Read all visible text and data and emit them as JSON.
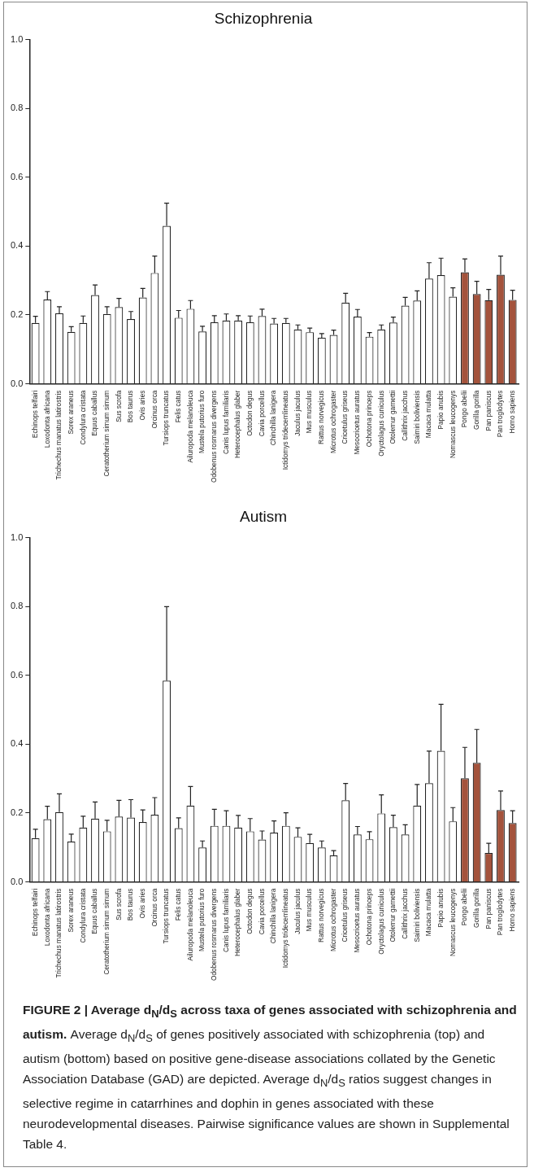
{
  "chart_data": [
    {
      "type": "bar",
      "title": "Schizophrenia",
      "categories": [
        "Echinops telfairi",
        "Loxodonta africana",
        "Trichechus manatus latirostris",
        "Sorex araneus",
        "Condylura cristata",
        "Equus caballus",
        "Ceratotherium simum simum",
        "Sus scrofa",
        "Bos taurus",
        "Ovis aries",
        "Orcinus orca",
        "Tursiops truncatus",
        "Felis catus",
        "Ailuropoda melanoleuca",
        "Mustela putorius furo",
        "Odobenus rosmarus divergens",
        "Canis lupus familiaris",
        "Heterocephalus glaber",
        "Octodon degus",
        "Cavia porcellus",
        "Chinchilla lanigera",
        "Ictidomys tridecemlineatus",
        "Jaculus jaculus",
        "Mus musculus",
        "Rattus norvegicus",
        "Microtus ochrogaster",
        "Cricetulus griseus",
        "Mesocricetus auratus",
        "Ochotona princeps",
        "Oryctolagus cuniculus",
        "Otolemur garnettii",
        "Callithrix jacchus",
        "Saimiri boliviensis",
        "Macaca mulatta",
        "Papio anubis",
        "Nomascus leucogenys",
        "Pongo abelii",
        "Gorilla gorilla",
        "Pan paniscus",
        "Pan troglodytes",
        "Homo sapiens"
      ],
      "values": [
        0.177,
        0.245,
        0.205,
        0.151,
        0.177,
        0.258,
        0.203,
        0.223,
        0.188,
        0.251,
        0.322,
        0.459,
        0.192,
        0.218,
        0.152,
        0.179,
        0.184,
        0.184,
        0.179,
        0.197,
        0.175,
        0.177,
        0.158,
        0.15,
        0.134,
        0.142,
        0.236,
        0.195,
        0.137,
        0.158,
        0.178,
        0.227,
        0.242,
        0.306,
        0.316,
        0.253,
        0.324,
        0.261,
        0.243,
        0.317,
        0.244
      ],
      "errors": [
        [
          0.177,
          0.196
        ],
        [
          0.245,
          0.268
        ],
        [
          0.205,
          0.224
        ],
        [
          0.151,
          0.166
        ],
        [
          0.177,
          0.197
        ],
        [
          0.258,
          0.287
        ],
        [
          0.203,
          0.224
        ],
        [
          0.223,
          0.248
        ],
        [
          0.188,
          0.21
        ],
        [
          0.251,
          0.277
        ],
        [
          0.322,
          0.371
        ],
        [
          0.459,
          0.525
        ],
        [
          0.192,
          0.213
        ],
        [
          0.218,
          0.242
        ],
        [
          0.152,
          0.167
        ],
        [
          0.179,
          0.198
        ],
        [
          0.184,
          0.203
        ],
        [
          0.184,
          0.198
        ],
        [
          0.179,
          0.197
        ],
        [
          0.197,
          0.217
        ],
        [
          0.175,
          0.19
        ],
        [
          0.177,
          0.19
        ],
        [
          0.158,
          0.171
        ],
        [
          0.15,
          0.162
        ],
        [
          0.134,
          0.146
        ],
        [
          0.142,
          0.156
        ],
        [
          0.236,
          0.263
        ],
        [
          0.195,
          0.216
        ],
        [
          0.137,
          0.149
        ],
        [
          0.158,
          0.171
        ],
        [
          0.178,
          0.194
        ],
        [
          0.227,
          0.251
        ],
        [
          0.242,
          0.27
        ],
        [
          0.306,
          0.352
        ],
        [
          0.316,
          0.365
        ],
        [
          0.253,
          0.279
        ],
        [
          0.324,
          0.363
        ],
        [
          0.261,
          0.298
        ],
        [
          0.243,
          0.274
        ],
        [
          0.317,
          0.371
        ],
        [
          0.244,
          0.272
        ]
      ],
      "colors": [
        "#ffffff",
        "#ffffff",
        "#ffffff",
        "#ffffff",
        "#ffffff",
        "#ffffff",
        "#ffffff",
        "#ffffff",
        "#ffffff",
        "#ffffff",
        "#ffffff",
        "#ffffff",
        "#ffffff",
        "#ffffff",
        "#ffffff",
        "#ffffff",
        "#ffffff",
        "#ffffff",
        "#ffffff",
        "#ffffff",
        "#ffffff",
        "#ffffff",
        "#ffffff",
        "#ffffff",
        "#ffffff",
        "#ffffff",
        "#ffffff",
        "#ffffff",
        "#ffffff",
        "#ffffff",
        "#ffffff",
        "#ffffff",
        "#ffffff",
        "#ffffff",
        "#ffffff",
        "#ffffff",
        "#a4533c",
        "#a4533c",
        "#a4533c",
        "#a4533c",
        "#a4533c"
      ],
      "ylim": [
        0,
        1
      ],
      "yticks": [
        {
          "value": 0,
          "label": "0.0"
        },
        {
          "value": 0.2,
          "label": "0.2"
        },
        {
          "value": 0.4,
          "label": "0.4"
        },
        {
          "value": 0.6,
          "label": "0.6"
        },
        {
          "value": 0.8,
          "label": "0.8"
        },
        {
          "value": 1,
          "label": "1.0"
        }
      ],
      "grid": false,
      "legend": false
    },
    {
      "type": "bar",
      "title": "Autism",
      "categories": [
        "Echinops telfairi",
        "Loxodonta africana",
        "Trichechus manatus latirostris",
        "Sorex araneus",
        "Condylura cristata",
        "Equus caballus",
        "Ceratotherium simum simum",
        "Sus scrofa",
        "Bos taurus",
        "Ovis aries",
        "Orcinus orca",
        "Tursiops truncatus",
        "Felis catus",
        "Ailuropoda melanoleuca",
        "Mustela putorius furo",
        "Odobenus rosmarus divergens",
        "Canis lupus familiaris",
        "Heterocephalus glaber",
        "Octodon degus",
        "Cavia porcellus",
        "Chinchilla lanigera",
        "Ictidomys tridecemlineatus",
        "Jaculus jaculus",
        "Mus musculus",
        "Rattus norvegicus",
        "Microtus ochrogaster",
        "Cricetulus griseus",
        "Mesocricetus auratus",
        "Ochotona princeps",
        "Oryctolagus cuniculus",
        "Otolemur garnettii",
        "Callithrix jacchus",
        "Saimiri boliviensis",
        "Macaca mulatta",
        "Papio anubis",
        "Nomascus leucogenys",
        "Pongo abelii",
        "Gorilla gorilla",
        "Pan paniscus",
        "Pan troglodytes",
        "Homo sapiens"
      ],
      "values": [
        0.127,
        0.182,
        0.203,
        0.117,
        0.158,
        0.184,
        0.147,
        0.19,
        0.187,
        0.174,
        0.195,
        0.585,
        0.156,
        0.222,
        0.1,
        0.163,
        0.163,
        0.158,
        0.147,
        0.123,
        0.143,
        0.163,
        0.131,
        0.113,
        0.1,
        0.077,
        0.237,
        0.138,
        0.124,
        0.199,
        0.159,
        0.138,
        0.222,
        0.287,
        0.381,
        0.176,
        0.301,
        0.346,
        0.084,
        0.209,
        0.171
      ],
      "errors": [
        [
          0.127,
          0.153
        ],
        [
          0.182,
          0.22
        ],
        [
          0.203,
          0.256
        ],
        [
          0.117,
          0.139
        ],
        [
          0.158,
          0.191
        ],
        [
          0.184,
          0.232
        ],
        [
          0.147,
          0.179
        ],
        [
          0.19,
          0.237
        ],
        [
          0.187,
          0.239
        ],
        [
          0.174,
          0.209
        ],
        [
          0.195,
          0.245
        ],
        [
          0.585,
          0.8
        ],
        [
          0.156,
          0.186
        ],
        [
          0.222,
          0.277
        ],
        [
          0.1,
          0.119
        ],
        [
          0.163,
          0.211
        ],
        [
          0.163,
          0.207
        ],
        [
          0.158,
          0.193
        ],
        [
          0.147,
          0.184
        ],
        [
          0.123,
          0.148
        ],
        [
          0.143,
          0.177
        ],
        [
          0.163,
          0.201
        ],
        [
          0.131,
          0.157
        ],
        [
          0.113,
          0.138
        ],
        [
          0.1,
          0.119
        ],
        [
          0.077,
          0.091
        ],
        [
          0.237,
          0.286
        ],
        [
          0.138,
          0.161
        ],
        [
          0.124,
          0.146
        ],
        [
          0.199,
          0.253
        ],
        [
          0.159,
          0.194
        ],
        [
          0.138,
          0.166
        ],
        [
          0.222,
          0.283
        ],
        [
          0.287,
          0.38
        ],
        [
          0.381,
          0.516
        ],
        [
          0.176,
          0.216
        ],
        [
          0.301,
          0.391
        ],
        [
          0.346,
          0.443
        ],
        [
          0.084,
          0.112
        ],
        [
          0.209,
          0.264
        ],
        [
          0.171,
          0.207
        ]
      ],
      "colors": [
        "#ffffff",
        "#ffffff",
        "#ffffff",
        "#ffffff",
        "#ffffff",
        "#ffffff",
        "#ffffff",
        "#ffffff",
        "#ffffff",
        "#ffffff",
        "#ffffff",
        "#ffffff",
        "#ffffff",
        "#ffffff",
        "#ffffff",
        "#ffffff",
        "#ffffff",
        "#ffffff",
        "#ffffff",
        "#ffffff",
        "#ffffff",
        "#ffffff",
        "#ffffff",
        "#ffffff",
        "#ffffff",
        "#ffffff",
        "#ffffff",
        "#ffffff",
        "#ffffff",
        "#ffffff",
        "#ffffff",
        "#ffffff",
        "#ffffff",
        "#ffffff",
        "#ffffff",
        "#ffffff",
        "#a4533c",
        "#a4533c",
        "#a4533c",
        "#a4533c",
        "#a4533c"
      ],
      "ylim": [
        0,
        1
      ],
      "yticks": [
        {
          "value": 0,
          "label": "0.0"
        },
        {
          "value": 0.2,
          "label": "0.2"
        },
        {
          "value": 0.4,
          "label": "0.4"
        },
        {
          "value": 0.6,
          "label": "0.6"
        },
        {
          "value": 0.8,
          "label": "0.8"
        },
        {
          "value": 1,
          "label": "1.0"
        }
      ],
      "grid": false,
      "legend": false,
      "annotations": [
        "FIGURE 2 | Average d$_{N}$/d$_{S}$ across taxa of genes associated with schizophrenia and autism.",
        "Average d$_{N}$/d$_{S}$ of genes positively associated with schizophrenia (top) and autism (bottom) based on positive gene-disease associations collated by the Genetic Association Database (GAD) are depicted. Average d$_{N}$/d$_{S}$ ratios suggest changes in selective regime in catarrhines and dophin in genes associated with these neurodevelopmental diseases. Pairwise significance values are shown in Supplemental Table 4."
      ]
    }
  ]
}
